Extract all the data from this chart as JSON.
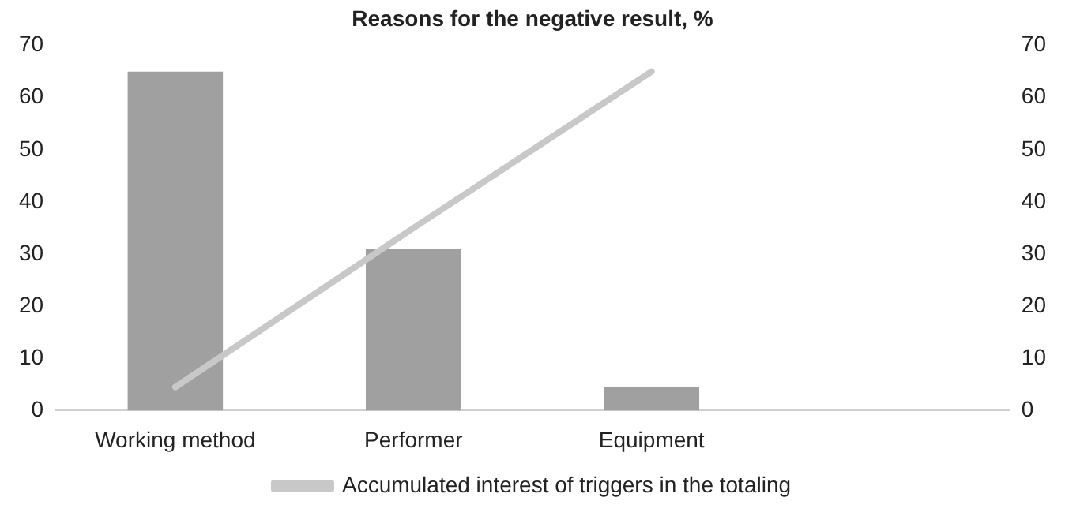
{
  "chart_data": {
    "type": "bar",
    "title": "Reasons for the negative result, %",
    "categories": [
      "Working method",
      "Performer",
      "Equipment",
      null
    ],
    "series": [
      {
        "color": "#a0a0a0",
        "values": [
          65,
          31,
          4.5,
          null
        ]
      },
      {
        "type": "line",
        "name": "Accumulated interest of triggers in the totaling",
        "color": "#c8c8c8",
        "axis": "y2",
        "values": [
          4.5,
          35,
          65,
          null
        ]
      }
    ],
    "ylim": [
      0,
      70
    ],
    "yticks": [
      0,
      10,
      20,
      30,
      40,
      50,
      60,
      70
    ],
    "y2lim": [
      0,
      70
    ],
    "y2ticks": [
      0,
      10,
      20,
      30,
      40,
      50,
      60,
      70
    ],
    "grid": false,
    "legend": "bottom"
  }
}
